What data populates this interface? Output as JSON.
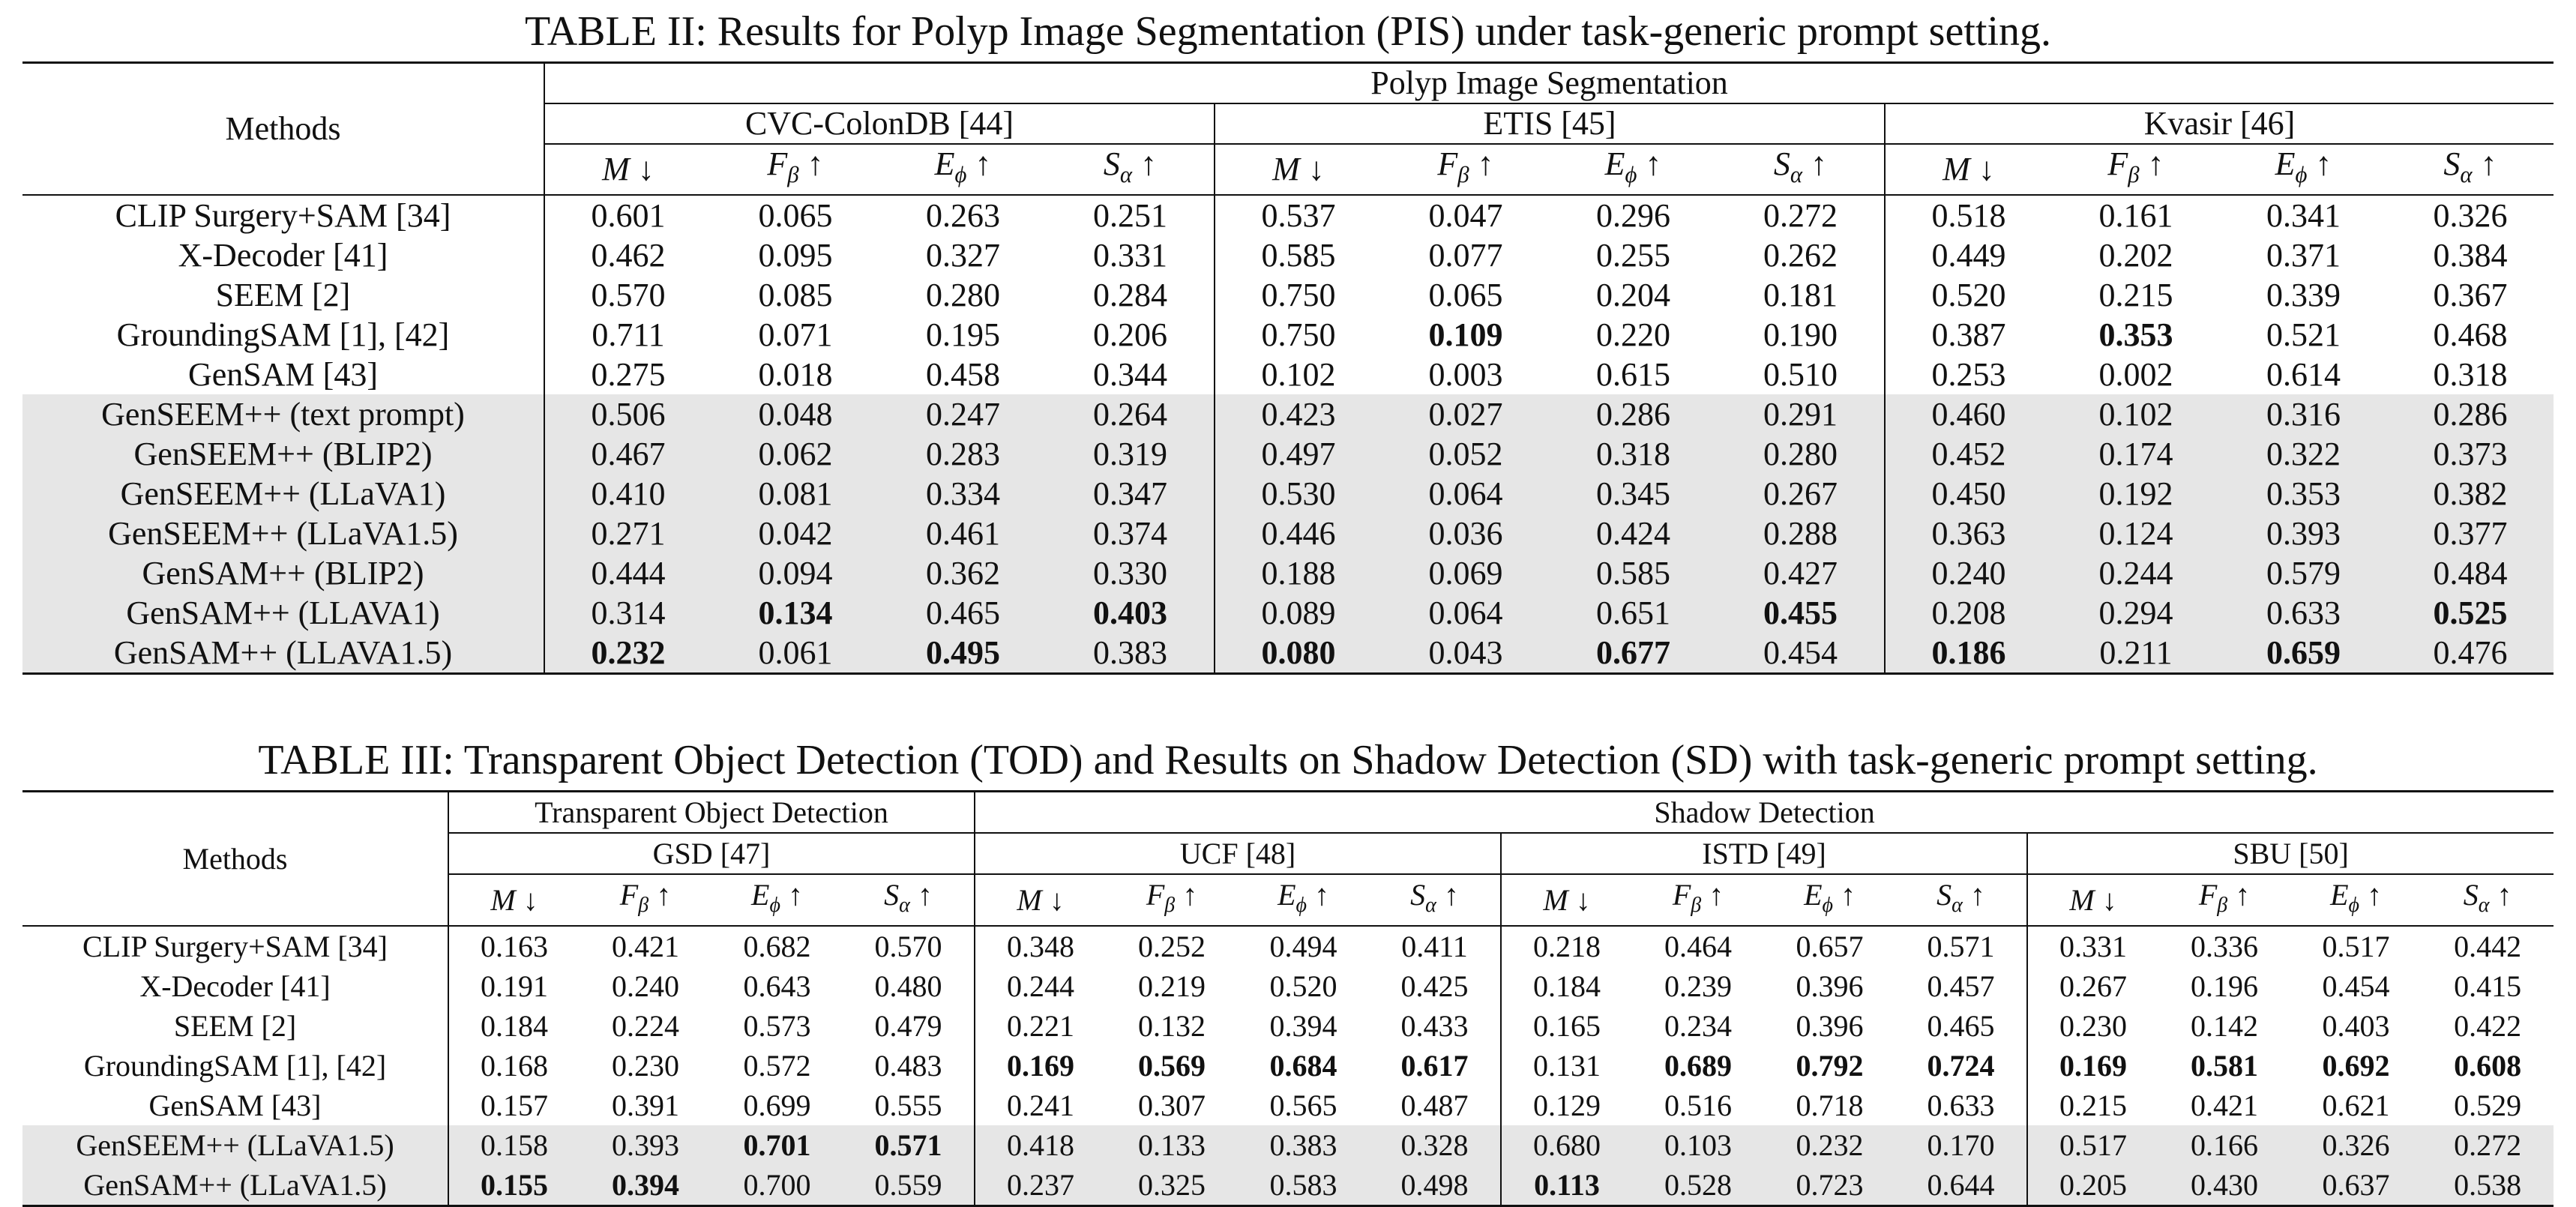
{
  "table2": {
    "caption": "TABLE II: Results for Polyp Image Segmentation (PIS) under task-generic prompt setting.",
    "methods_header": "Methods",
    "task_header": "Polyp Image Segmentation",
    "datasets": [
      "CVC-ColonDB [44]",
      "ETIS [45]",
      "Kvasir [46]"
    ],
    "rows": [
      {
        "method": "CLIP Surgery+SAM [34]",
        "values": [
          "0.601",
          "0.065",
          "0.263",
          "0.251",
          "0.537",
          "0.047",
          "0.296",
          "0.272",
          "0.518",
          "0.161",
          "0.341",
          "0.326"
        ],
        "bold": []
      },
      {
        "method": "X-Decoder [41]",
        "values": [
          "0.462",
          "0.095",
          "0.327",
          "0.331",
          "0.585",
          "0.077",
          "0.255",
          "0.262",
          "0.449",
          "0.202",
          "0.371",
          "0.384"
        ],
        "bold": []
      },
      {
        "method": "SEEM [2]",
        "values": [
          "0.570",
          "0.085",
          "0.280",
          "0.284",
          "0.750",
          "0.065",
          "0.204",
          "0.181",
          "0.520",
          "0.215",
          "0.339",
          "0.367"
        ],
        "bold": []
      },
      {
        "method": "GroundingSAM [1], [42]",
        "values": [
          "0.711",
          "0.071",
          "0.195",
          "0.206",
          "0.750",
          "0.109",
          "0.220",
          "0.190",
          "0.387",
          "0.353",
          "0.521",
          "0.468"
        ],
        "bold": [
          5,
          9
        ]
      },
      {
        "method": "GenSAM [43]",
        "values": [
          "0.275",
          "0.018",
          "0.458",
          "0.344",
          "0.102",
          "0.003",
          "0.615",
          "0.510",
          "0.253",
          "0.002",
          "0.614",
          "0.318"
        ],
        "bold": []
      },
      {
        "method": "GenSEEM++ (text prompt)",
        "values": [
          "0.506",
          "0.048",
          "0.247",
          "0.264",
          "0.423",
          "0.027",
          "0.286",
          "0.291",
          "0.460",
          "0.102",
          "0.316",
          "0.286"
        ],
        "bold": [],
        "shaded": true
      },
      {
        "method": "GenSEEM++ (BLIP2)",
        "values": [
          "0.467",
          "0.062",
          "0.283",
          "0.319",
          "0.497",
          "0.052",
          "0.318",
          "0.280",
          "0.452",
          "0.174",
          "0.322",
          "0.373"
        ],
        "bold": [],
        "shaded": true
      },
      {
        "method": "GenSEEM++ (LLaVA1)",
        "values": [
          "0.410",
          "0.081",
          "0.334",
          "0.347",
          "0.530",
          "0.064",
          "0.345",
          "0.267",
          "0.450",
          "0.192",
          "0.353",
          "0.382"
        ],
        "bold": [],
        "shaded": true
      },
      {
        "method": "GenSEEM++ (LLaVA1.5)",
        "values": [
          "0.271",
          "0.042",
          "0.461",
          "0.374",
          "0.446",
          "0.036",
          "0.424",
          "0.288",
          "0.363",
          "0.124",
          "0.393",
          "0.377"
        ],
        "bold": [],
        "shaded": true
      },
      {
        "method": "GenSAM++ (BLIP2)",
        "values": [
          "0.444",
          "0.094",
          "0.362",
          "0.330",
          "0.188",
          "0.069",
          "0.585",
          "0.427",
          "0.240",
          "0.244",
          "0.579",
          "0.484"
        ],
        "bold": [],
        "shaded": true
      },
      {
        "method": "GenSAM++ (LLAVA1)",
        "values": [
          "0.314",
          "0.134",
          "0.465",
          "0.403",
          "0.089",
          "0.064",
          "0.651",
          "0.455",
          "0.208",
          "0.294",
          "0.633",
          "0.525"
        ],
        "bold": [
          1,
          3,
          7,
          11
        ],
        "shaded": true
      },
      {
        "method": "GenSAM++ (LLAVA1.5)",
        "values": [
          "0.232",
          "0.061",
          "0.495",
          "0.383",
          "0.080",
          "0.043",
          "0.677",
          "0.454",
          "0.186",
          "0.211",
          "0.659",
          "0.476"
        ],
        "bold": [
          0,
          2,
          4,
          6,
          8,
          10
        ],
        "shaded": true
      }
    ]
  },
  "table3": {
    "caption": "TABLE III: Transparent Object Detection (TOD) and Results on Shadow Detection (SD) with task-generic prompt setting.",
    "methods_header": "Methods",
    "task_headers": [
      "Transparent Object Detection",
      "Shadow Detection"
    ],
    "datasets": [
      "GSD [47]",
      "UCF [48]",
      "ISTD [49]",
      "SBU [50]"
    ],
    "rows": [
      {
        "method": "CLIP Surgery+SAM [34]",
        "values": [
          "0.163",
          "0.421",
          "0.682",
          "0.570",
          "0.348",
          "0.252",
          "0.494",
          "0.411",
          "0.218",
          "0.464",
          "0.657",
          "0.571",
          "0.331",
          "0.336",
          "0.517",
          "0.442"
        ],
        "bold": []
      },
      {
        "method": "X-Decoder [41]",
        "values": [
          "0.191",
          "0.240",
          "0.643",
          "0.480",
          "0.244",
          "0.219",
          "0.520",
          "0.425",
          "0.184",
          "0.239",
          "0.396",
          "0.457",
          "0.267",
          "0.196",
          "0.454",
          "0.415"
        ],
        "bold": []
      },
      {
        "method": "SEEM [2]",
        "values": [
          "0.184",
          "0.224",
          "0.573",
          "0.479",
          "0.221",
          "0.132",
          "0.394",
          "0.433",
          "0.165",
          "0.234",
          "0.396",
          "0.465",
          "0.230",
          "0.142",
          "0.403",
          "0.422"
        ],
        "bold": []
      },
      {
        "method": "GroundingSAM [1], [42]",
        "values": [
          "0.168",
          "0.230",
          "0.572",
          "0.483",
          "0.169",
          "0.569",
          "0.684",
          "0.617",
          "0.131",
          "0.689",
          "0.792",
          "0.724",
          "0.169",
          "0.581",
          "0.692",
          "0.608"
        ],
        "bold": [
          4,
          5,
          6,
          7,
          9,
          10,
          11,
          12,
          13,
          14,
          15
        ]
      },
      {
        "method": "GenSAM [43]",
        "values": [
          "0.157",
          "0.391",
          "0.699",
          "0.555",
          "0.241",
          "0.307",
          "0.565",
          "0.487",
          "0.129",
          "0.516",
          "0.718",
          "0.633",
          "0.215",
          "0.421",
          "0.621",
          "0.529"
        ],
        "bold": []
      },
      {
        "method": "GenSEEM++ (LLaVA1.5)",
        "values": [
          "0.158",
          "0.393",
          "0.701",
          "0.571",
          "0.418",
          "0.133",
          "0.383",
          "0.328",
          "0.680",
          "0.103",
          "0.232",
          "0.170",
          "0.517",
          "0.166",
          "0.326",
          "0.272"
        ],
        "bold": [
          2,
          3
        ],
        "shaded": true
      },
      {
        "method": "GenSAM++ (LLaVA1.5)",
        "values": [
          "0.155",
          "0.394",
          "0.700",
          "0.559",
          "0.237",
          "0.325",
          "0.583",
          "0.498",
          "0.113",
          "0.528",
          "0.723",
          "0.644",
          "0.205",
          "0.430",
          "0.637",
          "0.538"
        ],
        "bold": [
          0,
          1,
          8
        ],
        "shaded": true
      }
    ]
  }
}
